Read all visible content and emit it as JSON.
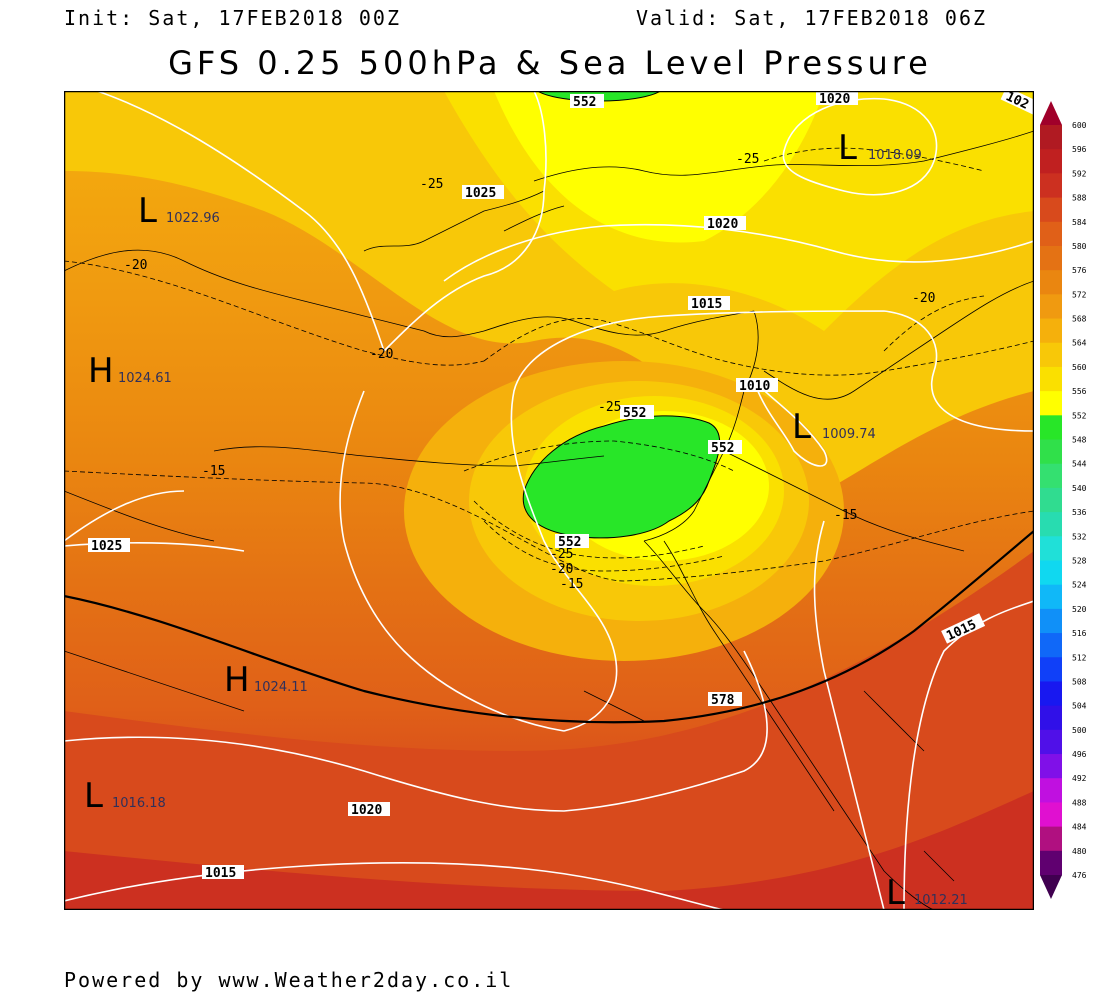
{
  "header": {
    "init": "Init: Sat, 17FEB2018 00Z",
    "valid": "Valid: Sat, 17FEB2018 06Z",
    "title": "GFS 0.25 500hPa & Sea Level Pressure"
  },
  "footer": "Powered by www.Weather2day.co.il",
  "pressure_centers": [
    {
      "type": "L",
      "value": "1022.96"
    },
    {
      "type": "L",
      "value": "1018.09"
    },
    {
      "type": "H",
      "value": "1024.61"
    },
    {
      "type": "L",
      "value": "1009.74"
    },
    {
      "type": "H",
      "value": "1024.11"
    },
    {
      "type": "L",
      "value": "1016.18"
    },
    {
      "type": "L",
      "value": "1012.21"
    }
  ],
  "isobar_labels": [
    "1020",
    "102",
    "1025",
    "1020",
    "1015",
    "1010",
    "1025",
    "1015",
    "1020",
    "1015"
  ],
  "height_labels": [
    "552",
    "552",
    "552",
    "552",
    "578"
  ],
  "temperature_labels": [
    "-25",
    "-25",
    "-20",
    "-20",
    "-20",
    "-25",
    "-15",
    "-15",
    "-25",
    "-20",
    "-15"
  ],
  "colorbar": {
    "levels": [
      "600",
      "596",
      "592",
      "588",
      "584",
      "580",
      "576",
      "572",
      "568",
      "564",
      "560",
      "556",
      "552",
      "548",
      "544",
      "540",
      "536",
      "532",
      "528",
      "524",
      "520",
      "516",
      "512",
      "508",
      "504",
      "500",
      "496",
      "492",
      "488",
      "484",
      "480",
      "476"
    ],
    "colors": [
      "#a0002a",
      "#b01a22",
      "#c02020",
      "#cc3020",
      "#d84a1c",
      "#e06018",
      "#e47214",
      "#ea8610",
      "#f09a10",
      "#f5b00c",
      "#f8c808",
      "#fae000",
      "#ffff00",
      "#28e628",
      "#30e04a",
      "#34e070",
      "#30dc90",
      "#28dcb0",
      "#20e0d8",
      "#10d8f0",
      "#10b8f8",
      "#1090f8",
      "#1068f8",
      "#1040f8",
      "#1818f0",
      "#3010e8",
      "#5010e8",
      "#8010e8",
      "#c010e0",
      "#e010d0",
      "#b01080",
      "#600070",
      "#400050"
    ]
  }
}
